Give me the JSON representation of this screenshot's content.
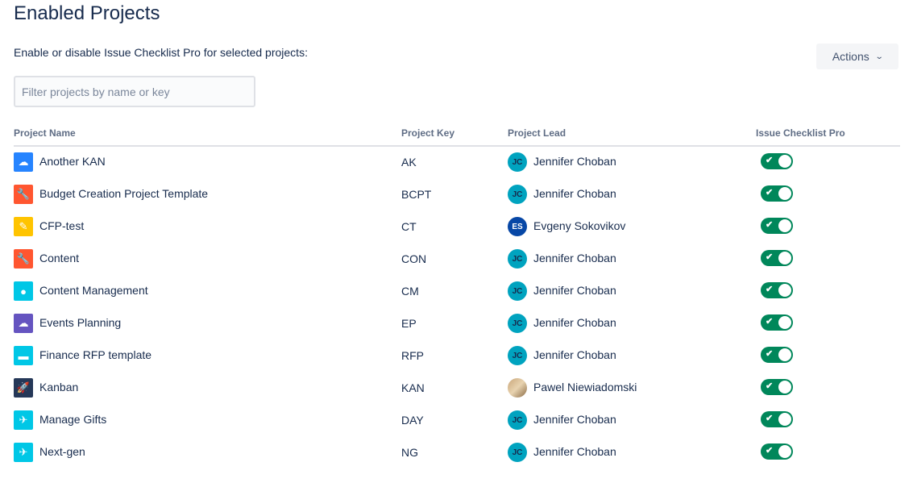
{
  "page": {
    "title": "Enabled Projects",
    "subtitle": "Enable or disable Issue Checklist Pro for selected projects:",
    "actions_label": "Actions",
    "filter_placeholder": "Filter projects by name or key"
  },
  "columns": [
    "Project Name",
    "Project Key",
    "Project Lead",
    "Issue Checklist Pro"
  ],
  "accent": "#00875a",
  "projects": [
    {
      "name": "Another KAN",
      "key": "AK",
      "lead": "Jennifer Choban",
      "initials": "JC",
      "icon": "cloud-icon",
      "icon_bg": "#2684ff",
      "glyph": "☁",
      "enabled": true
    },
    {
      "name": "Budget Creation Project Template",
      "key": "BCPT",
      "lead": "Jennifer Choban",
      "initials": "JC",
      "icon": "wrench-icon",
      "icon_bg": "#ff5630",
      "glyph": "🔧",
      "enabled": true
    },
    {
      "name": "CFP-test",
      "key": "CT",
      "lead": "Evgeny Sokovikov",
      "initials": "ES",
      "icon": "pencil-icon",
      "icon_bg": "#ffc400",
      "glyph": "✎",
      "enabled": true
    },
    {
      "name": "Content",
      "key": "CON",
      "lead": "Jennifer Choban",
      "initials": "JC",
      "icon": "wrench-icon",
      "icon_bg": "#ff5630",
      "glyph": "🔧",
      "enabled": true
    },
    {
      "name": "Content Management",
      "key": "CM",
      "lead": "Jennifer Choban",
      "initials": "JC",
      "icon": "robot-icon",
      "icon_bg": "#00c7e6",
      "glyph": "●",
      "enabled": true
    },
    {
      "name": "Events Planning",
      "key": "EP",
      "lead": "Jennifer Choban",
      "initials": "JC",
      "icon": "storm-cloud-icon",
      "icon_bg": "#6554c0",
      "glyph": "☁",
      "enabled": true
    },
    {
      "name": "Finance RFP template",
      "key": "RFP",
      "lead": "Jennifer Choban",
      "initials": "JC",
      "icon": "battery-icon",
      "icon_bg": "#00c7e6",
      "glyph": "▬",
      "enabled": true
    },
    {
      "name": "Kanban",
      "key": "KAN",
      "lead": "Pawel Niewiadomski",
      "initials": "",
      "icon": "rocket-icon",
      "icon_bg": "#253858",
      "glyph": "🚀",
      "enabled": true
    },
    {
      "name": "Manage Gifts",
      "key": "DAY",
      "lead": "Jennifer Choban",
      "initials": "JC",
      "icon": "plane-icon",
      "icon_bg": "#00c7e6",
      "glyph": "✈",
      "enabled": true
    },
    {
      "name": "Next-gen",
      "key": "NG",
      "lead": "Jennifer Choban",
      "initials": "JC",
      "icon": "plane-icon",
      "icon_bg": "#00c7e6",
      "glyph": "✈",
      "enabled": true
    }
  ]
}
